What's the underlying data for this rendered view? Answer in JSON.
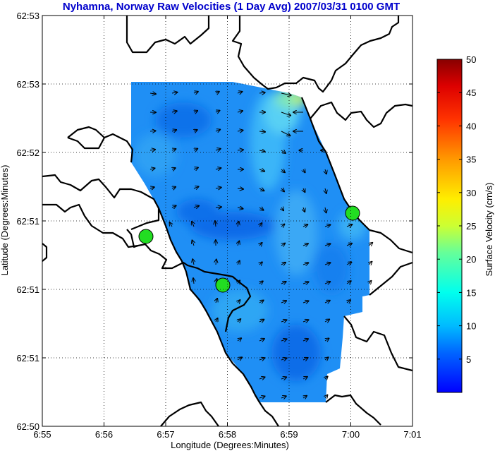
{
  "title": "Nyhamna, Norway Raw Velocities (1 Day Avg) 2007/03/31 0100 GMT",
  "xlabel": "Longitude (Degrees:Minutes)",
  "ylabel": "Latitude (Degrees:Minutes)",
  "x_ticks": [
    "6:55",
    "6:56",
    "6:57",
    "6:58",
    "6:59",
    "7:00",
    "7:01"
  ],
  "y_ticks": [
    "62:53",
    "62:53",
    "62:52",
    "62:51",
    "62:51",
    "62:51",
    "62:50"
  ],
  "colorbar": {
    "label": "Surface Velocity (cm/s)",
    "min": 0,
    "max": 50,
    "ticks": [
      "5",
      "10",
      "15",
      "20",
      "25",
      "30",
      "35",
      "40",
      "45",
      "50"
    ],
    "colormap": "jet"
  },
  "colors": {
    "title": "#0000cc",
    "coastline": "#000000",
    "site_marker": "#22dd22",
    "grid": "#000000"
  },
  "map_data": {
    "type": "current-vector-field",
    "sites": [
      "site-west",
      "site-south",
      "site-east"
    ],
    "grid_style": "dotted"
  }
}
